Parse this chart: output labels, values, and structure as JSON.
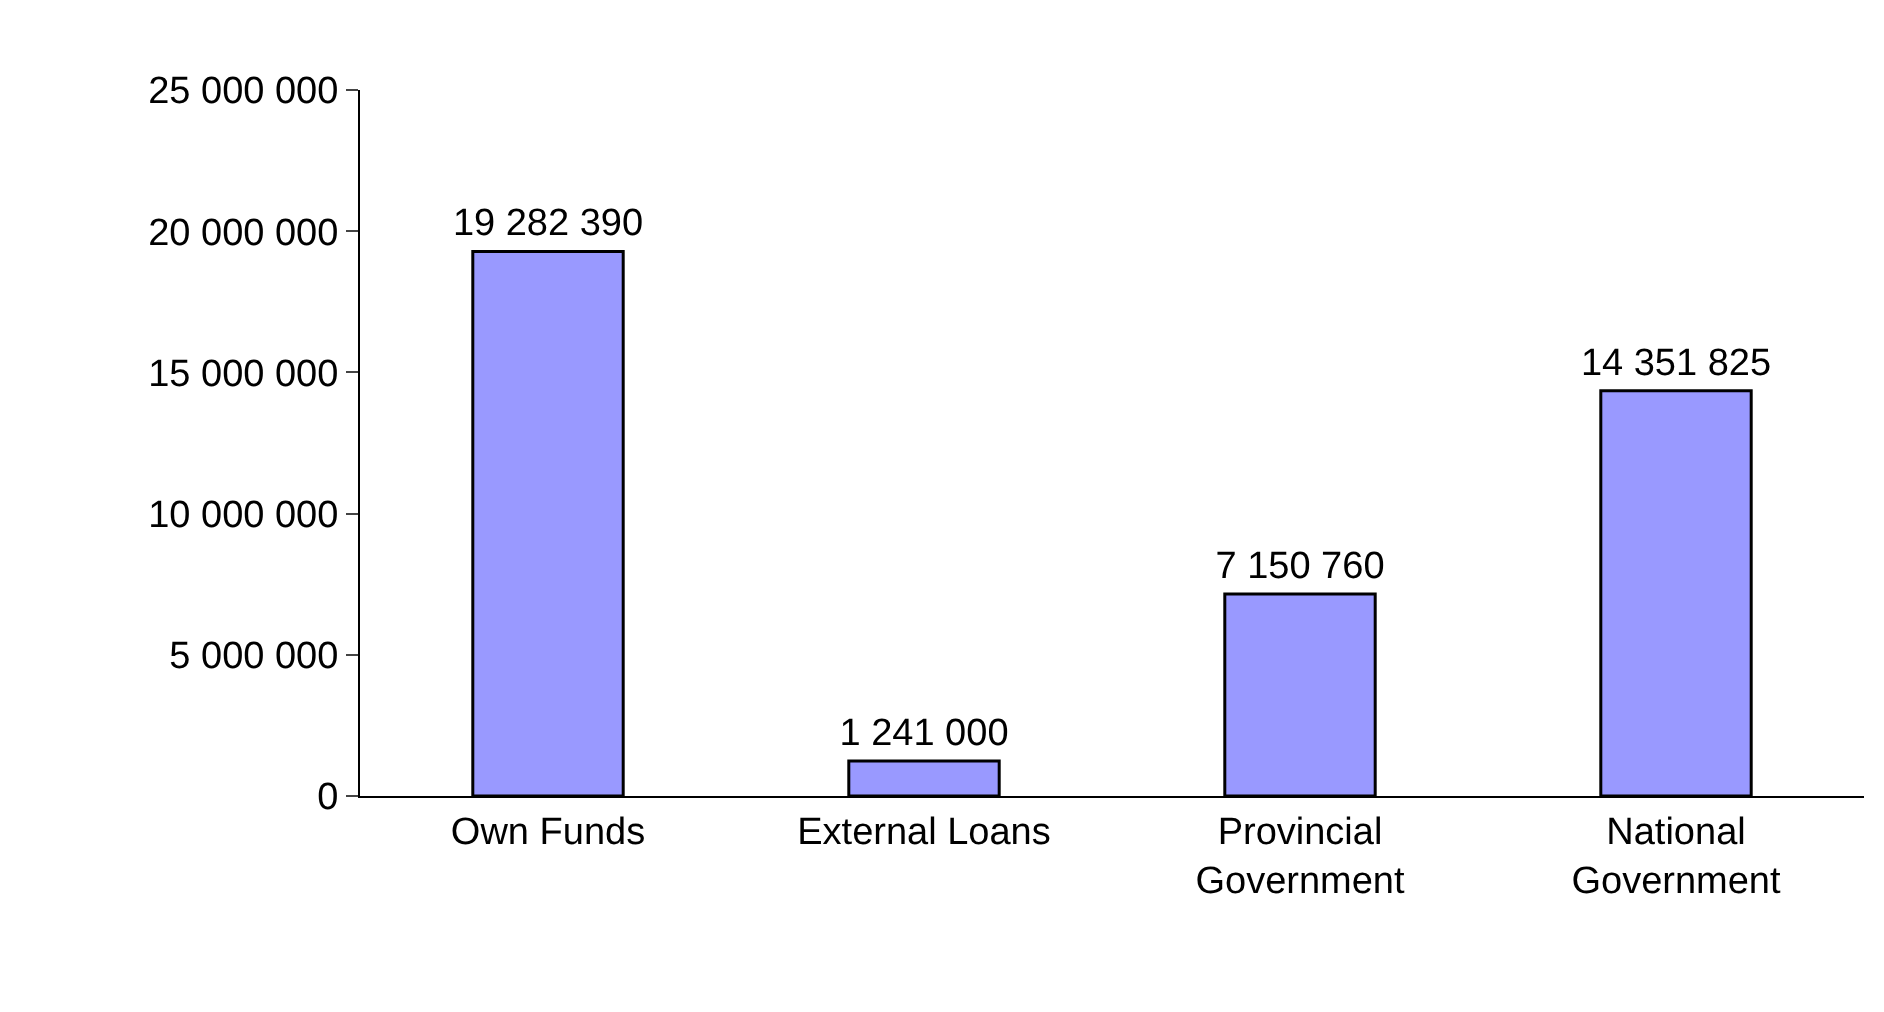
{
  "chart_data": {
    "type": "bar",
    "categories": [
      "Own Funds",
      "External Loans",
      "Provincial\nGovernment",
      "National\nGovernment"
    ],
    "values": [
      19282390,
      1241000,
      7150760,
      14351825
    ],
    "value_labels": [
      "19 282 390",
      "1 241 000",
      "7 150 760",
      "14 351 825"
    ],
    "color": "#9999ff",
    "ylim": [
      0,
      25000000
    ],
    "yticks": [
      0,
      {
        "value": 5000000,
        "label": "5 000 000"
      },
      {
        "value": 10000000,
        "label": "10 000 000"
      },
      {
        "value": 15000000,
        "label": "15 000 000"
      },
      {
        "value": 20000000,
        "label": "20 000 000"
      },
      {
        "value": 25000000,
        "label": "25 000 000"
      }
    ]
  }
}
